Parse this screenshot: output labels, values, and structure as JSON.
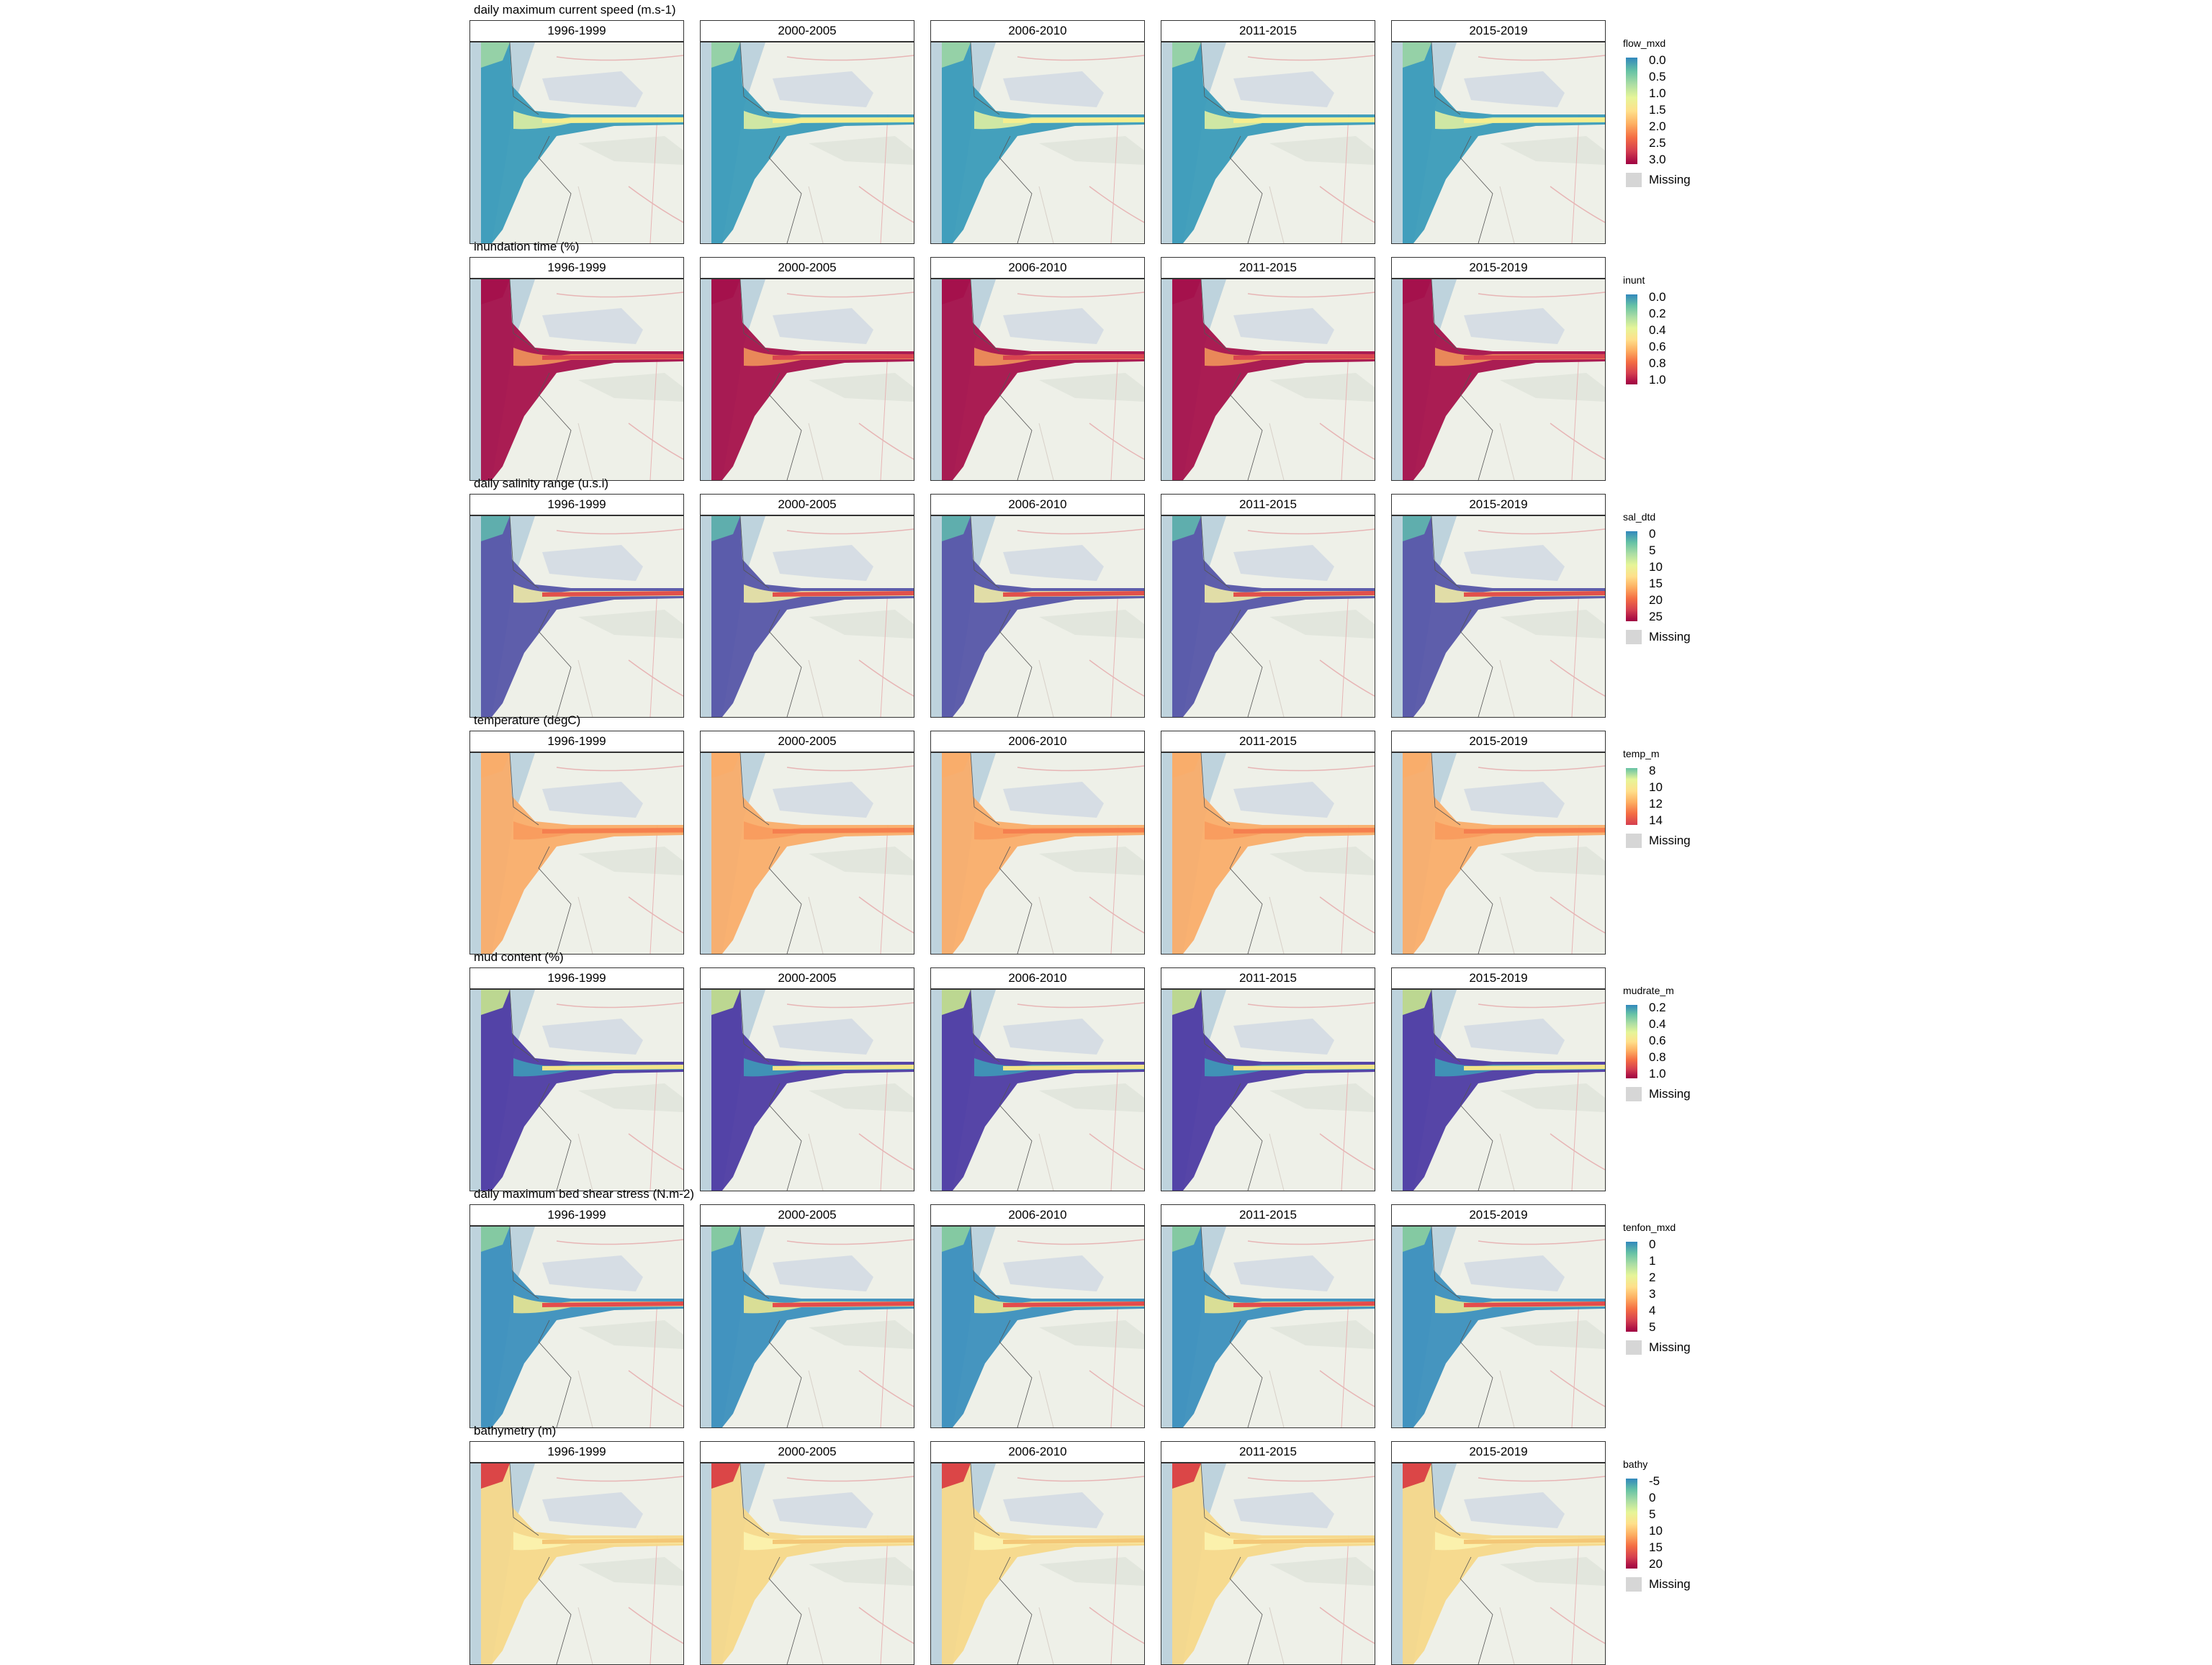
{
  "figure": {
    "periods": [
      "1996-1999",
      "2000-2005",
      "2006-2010",
      "2011-2015",
      "2015-2019"
    ],
    "missing_label": "Missing",
    "rows": [
      {
        "id": "flow",
        "title": "daily maximum current speed (m.s-1)",
        "legend_title": "flow_mxd",
        "ticks": [
          "0.0",
          "0.5",
          "1.0",
          "1.5",
          "2.0",
          "2.5",
          "3.0"
        ],
        "has_missing": true,
        "sea_color": "#3a9bb9",
        "channel_color": "#f6ee8e",
        "edge_color": "#e8f3a0",
        "patch_color": "#9ed6a4"
      },
      {
        "id": "inund",
        "title": "inundation time (%)",
        "legend_title": "inunt",
        "ticks": [
          "0.0",
          "0.2",
          "0.4",
          "0.6",
          "0.8",
          "1.0"
        ],
        "has_missing": false,
        "sea_color": "#a5114b",
        "channel_color": "#d94350",
        "edge_color": "#f59b5b",
        "patch_color": "#a5114b"
      },
      {
        "id": "sal",
        "title": "daily salinity range (u.s.i)",
        "legend_title": "sal_dtd",
        "ticks": [
          "0",
          "5",
          "10",
          "15",
          "20",
          "25"
        ],
        "has_missing": true,
        "sea_color": "#5555a8",
        "channel_color": "#e1504b",
        "edge_color": "#f8f3a6",
        "patch_color": "#5fb7ad"
      },
      {
        "id": "temp",
        "title": "temperature (degC)",
        "legend_title": "temp_m",
        "ticks": [
          "8",
          "10",
          "12",
          "14"
        ],
        "has_missing": true,
        "sea_color": "#f9ad6a",
        "channel_color": "#f57f4f",
        "edge_color": "#f99a5c",
        "patch_color": "#f9ad6a"
      },
      {
        "id": "mud",
        "title": "mud content (%)",
        "legend_title": "mudrate_m",
        "ticks": [
          "0.2",
          "0.4",
          "0.6",
          "0.8",
          "1.0"
        ],
        "has_missing": true,
        "sea_color": "#4d3ba3",
        "channel_color": "#f3e58a",
        "edge_color": "#3c9fb8",
        "patch_color": "#c8e88f"
      },
      {
        "id": "shear",
        "title": "daily maximum bed shear stress (N.m-2)",
        "legend_title": "tenfon_mxd",
        "ticks": [
          "0",
          "1",
          "2",
          "3",
          "4",
          "5"
        ],
        "has_missing": true,
        "sea_color": "#3b8fbd",
        "channel_color": "#e44c4c",
        "edge_color": "#f3eb8e",
        "patch_color": "#8ccf9f"
      },
      {
        "id": "bathy",
        "title": "bathymetry (m)",
        "legend_title": "bathy",
        "ticks": [
          "-5",
          "0",
          "5",
          "10",
          "15",
          "20"
        ],
        "has_missing": true,
        "sea_color": "#f6d88a",
        "channel_color": "#f3c777",
        "edge_color": "#fbf4b2",
        "patch_color": "#d8363f"
      }
    ]
  }
}
